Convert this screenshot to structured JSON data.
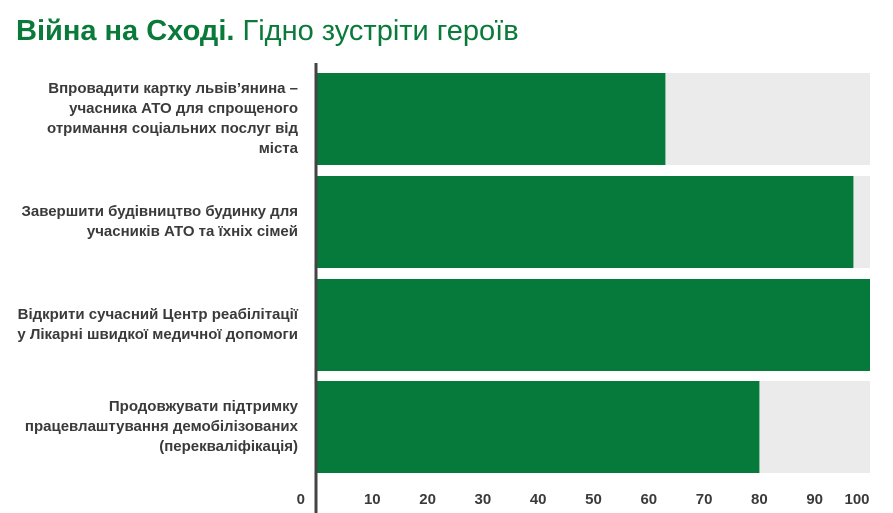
{
  "header": {
    "title_bold": "Війна на Сході.",
    "title_regular": "Гідно зустріти героїв"
  },
  "colors": {
    "bar": "#067a3b",
    "track": "#ebebeb",
    "axis": "#444444",
    "title": "#0a7a3a",
    "label": "#3a3a3a"
  },
  "chart_data": {
    "type": "bar",
    "orientation": "horizontal",
    "title": "Війна на Сході. Гідно зустріти героїв",
    "categories": [
      "Впровадити картку львів’янина – учасника АТО для спрощеного отримання соціальних послуг від міста",
      "Завершити будівництво будинку для учасників АТО та їхніх сімей",
      "Відкрити сучасний Центр реабілітації у Лікарні швидкої медичної допомоги",
      "Продовжувати підтримку працевлаштування демобілізованих (перекваліфікація)"
    ],
    "category_lines": [
      [
        "Впровадити картку львів’янина –",
        "учасника АТО для спрощеного",
        "отримання соціальних послуг від",
        "міста"
      ],
      [
        "Завершити будівництво будинку для",
        "учасників АТО та їхніх сімей"
      ],
      [
        "Відкрити сучасний Центр реабілітації",
        "у Лікарні швидкої медичної допомоги"
      ],
      [
        "Продовжувати підтримку",
        "працевлаштування демобілізованих",
        "(перекваліфікація)"
      ]
    ],
    "values": [
      63,
      97,
      100,
      80
    ],
    "xlim": [
      0,
      100
    ],
    "xticks": [
      0,
      10,
      20,
      30,
      40,
      50,
      60,
      70,
      80,
      90,
      100
    ],
    "xlabel": "",
    "ylabel": "",
    "grid": false,
    "legend": "none"
  }
}
